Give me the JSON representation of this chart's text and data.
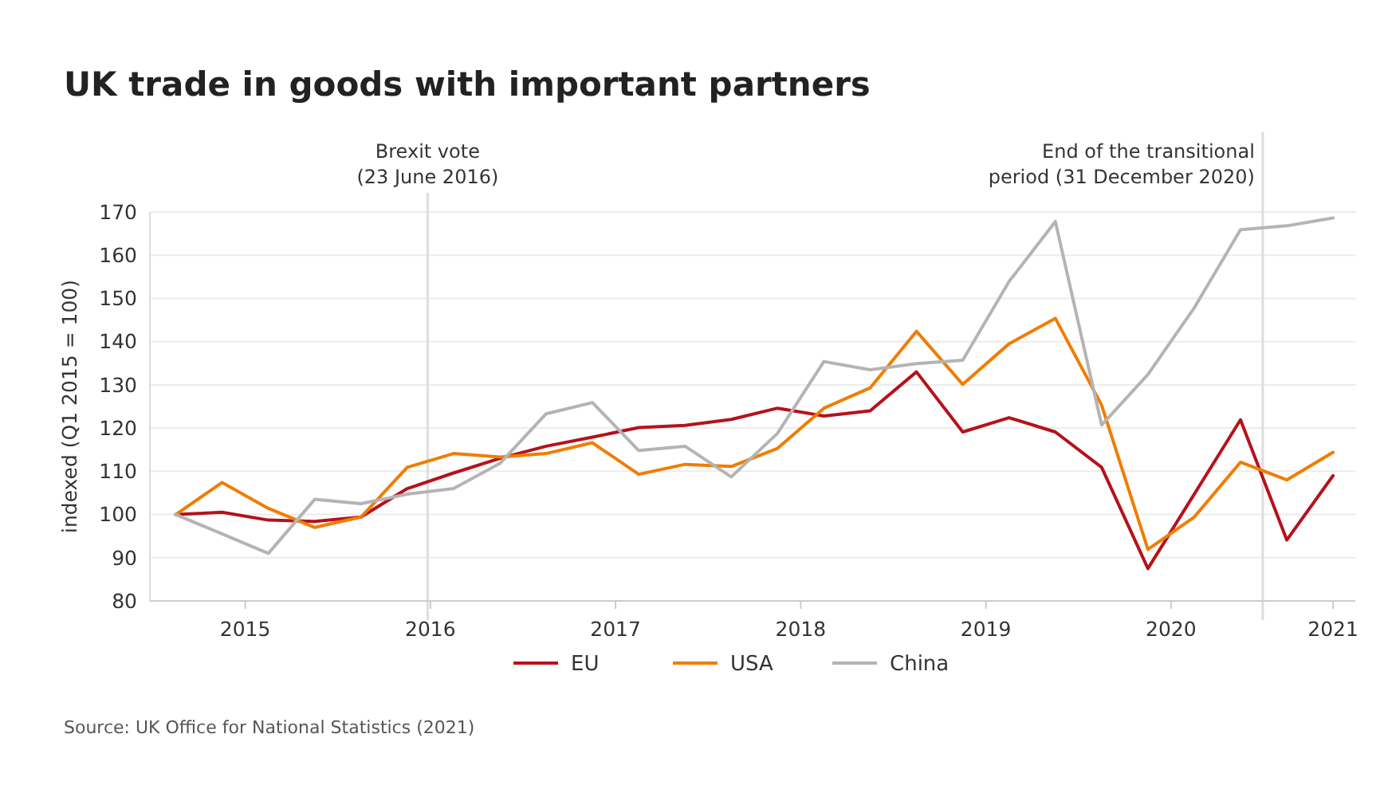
{
  "chart_data": {
    "type": "line",
    "title": "UK trade in goods with important partners",
    "ylabel": "indexed (Q1 2015 = 100)",
    "x": [
      2015,
      2015.25,
      2015.5,
      2015.75,
      2016,
      2016.25,
      2016.5,
      2016.75,
      2017,
      2017.25,
      2017.5,
      2017.75,
      2018,
      2018.25,
      2018.5,
      2018.75,
      2019,
      2019.25,
      2019.5,
      2019.75,
      2020,
      2020.25,
      2020.5,
      2020.75,
      2021,
      2021.25
    ],
    "series": [
      {
        "name": "EU",
        "color": "#b5121b",
        "values": [
          100,
          100.5,
          98.7,
          98.4,
          99.4,
          106,
          109.6,
          113,
          115.8,
          117.9,
          120.1,
          120.6,
          122,
          124.6,
          122.8,
          124,
          133,
          119.1,
          122.4,
          119.1,
          110.9,
          87.5,
          104.7,
          121.9,
          94.1,
          109
        ]
      },
      {
        "name": "USA",
        "color": "#f07d00",
        "values": [
          100,
          107.4,
          101.4,
          97,
          99.4,
          110.9,
          114.1,
          113.3,
          114.1,
          116.6,
          109.3,
          111.6,
          111.1,
          115.3,
          124.6,
          129.3,
          142.4,
          130.1,
          139.5,
          145.4,
          125.3,
          91.9,
          99.4,
          112.1,
          108,
          114.4
        ]
      },
      {
        "name": "China",
        "color": "#b4b4b4",
        "values": [
          100,
          95.5,
          91,
          103.5,
          102.5,
          104.7,
          106,
          111.8,
          123.3,
          125.9,
          114.8,
          115.8,
          108.7,
          118.8,
          135.4,
          133.5,
          134.9,
          135.7,
          153.9,
          167.8,
          120.7,
          132.4,
          147.8,
          165.9,
          166.8,
          168.6
        ]
      }
    ],
    "xlim": [
      2014.86,
      2021.37
    ],
    "xticks": [
      {
        "value": 2015.375,
        "label": "2015"
      },
      {
        "value": 2016.375,
        "label": "2016"
      },
      {
        "value": 2017.375,
        "label": "2017"
      },
      {
        "value": 2018.375,
        "label": "2018"
      },
      {
        "value": 2019.375,
        "label": "2019"
      },
      {
        "value": 2020.375,
        "label": "2020"
      },
      {
        "value": 2021.25,
        "label": "2021"
      }
    ],
    "ylim": [
      80,
      170
    ],
    "yticks": [
      80,
      90,
      100,
      110,
      120,
      130,
      140,
      150,
      160,
      170
    ],
    "grid": "y",
    "legend": "bottom",
    "marker": "none",
    "line_style": "solid",
    "ref_lines": [
      {
        "axis": "x",
        "value": 2016.36,
        "label": "Brexit vote\n(23 June 2016)",
        "color": "#dddddd"
      },
      {
        "axis": "x",
        "value": 2020.87,
        "label": "End of the transitional\nperiod (31 December 2020)",
        "color": "#dddddd"
      }
    ],
    "annotations": [
      "Source: UK Office for National Statistics (2021)"
    ]
  }
}
